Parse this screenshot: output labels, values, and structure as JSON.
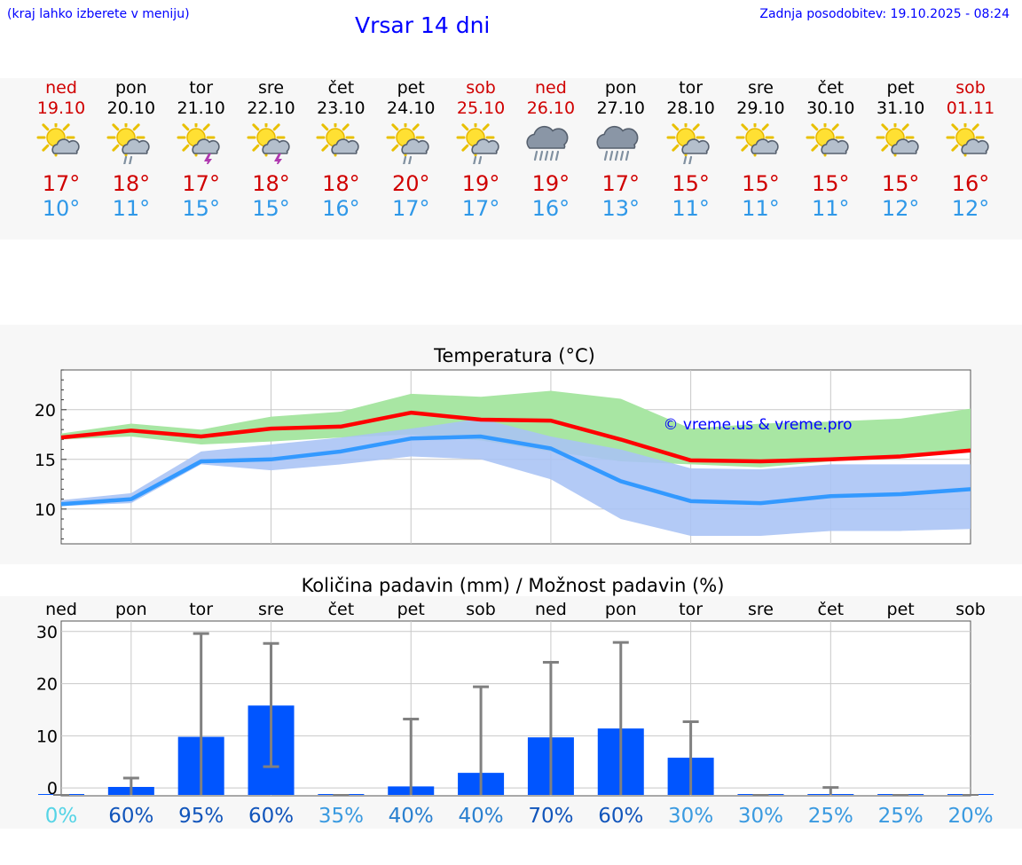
{
  "header": {
    "hint": "(kraj lahko izberete v meniju)",
    "title": "Vrsar 14 dni",
    "updated": "Zadnja posodobitev: 19.10.2025 - 08:24"
  },
  "days": [
    {
      "name": "ned",
      "date": "19.10",
      "icon": "sun-cloud",
      "tmax": "17°",
      "tmin": "10°",
      "weekend": true
    },
    {
      "name": "pon",
      "date": "20.10",
      "icon": "sun-cloud-rain",
      "tmax": "18°",
      "tmin": "11°",
      "weekend": false
    },
    {
      "name": "tor",
      "date": "21.10",
      "icon": "sun-cloud-thunder",
      "tmax": "17°",
      "tmin": "15°",
      "weekend": false
    },
    {
      "name": "sre",
      "date": "22.10",
      "icon": "sun-cloud-thunder",
      "tmax": "18°",
      "tmin": "15°",
      "weekend": false
    },
    {
      "name": "čet",
      "date": "23.10",
      "icon": "sun-cloud",
      "tmax": "18°",
      "tmin": "16°",
      "weekend": false
    },
    {
      "name": "pet",
      "date": "24.10",
      "icon": "sun-cloud-rain",
      "tmax": "20°",
      "tmin": "17°",
      "weekend": false
    },
    {
      "name": "sob",
      "date": "25.10",
      "icon": "sun-cloud-rain",
      "tmax": "19°",
      "tmin": "17°",
      "weekend": true
    },
    {
      "name": "ned",
      "date": "26.10",
      "icon": "cloud-heavy-rain",
      "tmax": "19°",
      "tmin": "16°",
      "weekend": true
    },
    {
      "name": "pon",
      "date": "27.10",
      "icon": "cloud-heavy-rain",
      "tmax": "17°",
      "tmin": "13°",
      "weekend": false
    },
    {
      "name": "tor",
      "date": "28.10",
      "icon": "sun-cloud-rain",
      "tmax": "15°",
      "tmin": "11°",
      "weekend": false
    },
    {
      "name": "sre",
      "date": "29.10",
      "icon": "sun-cloud",
      "tmax": "15°",
      "tmin": "11°",
      "weekend": false
    },
    {
      "name": "čet",
      "date": "30.10",
      "icon": "sun-cloud",
      "tmax": "15°",
      "tmin": "11°",
      "weekend": false
    },
    {
      "name": "pet",
      "date": "31.10",
      "icon": "sun-cloud",
      "tmax": "15°",
      "tmin": "12°",
      "weekend": false
    },
    {
      "name": "sob",
      "date": "01.11",
      "icon": "sun-cloud",
      "tmax": "16°",
      "tmin": "12°",
      "weekend": true
    }
  ],
  "colors": {
    "max_line": "#ff0000",
    "min_line": "#3399ff",
    "max_band": "#a8e6a3",
    "min_band": "#a9c3f5",
    "overlap_band": "#7fc7a8",
    "bar": "#0055ff",
    "whisker": "#808080",
    "link": "#0000ff"
  },
  "chart_data": [
    {
      "type": "line",
      "title": "Temperatura (°C)",
      "watermark": "© vreme.us & vreme.pro",
      "ylim": [
        6.5,
        24
      ],
      "yticks": [
        10,
        15,
        20
      ],
      "series": [
        {
          "name": "max",
          "values": [
            17.2,
            17.9,
            17.3,
            18.1,
            18.3,
            19.7,
            19.0,
            18.9,
            17.0,
            14.9,
            14.8,
            15.0,
            15.3,
            15.9
          ]
        },
        {
          "name": "min",
          "values": [
            10.5,
            11.0,
            14.8,
            15.0,
            15.8,
            17.1,
            17.3,
            16.1,
            12.8,
            10.8,
            10.6,
            11.3,
            11.5,
            12.0
          ]
        }
      ],
      "max_band": {
        "low": [
          17.0,
          17.3,
          16.5,
          16.8,
          17.2,
          17.5,
          16.9,
          15.8,
          14.8,
          14.5,
          14.2,
          14.8,
          15.3,
          16.0
        ],
        "high": [
          17.6,
          18.6,
          18.0,
          19.3,
          19.8,
          21.6,
          21.3,
          21.9,
          21.1,
          18.1,
          18.6,
          18.8,
          19.1,
          20.1
        ]
      },
      "min_band": {
        "low": [
          10.3,
          10.6,
          14.5,
          13.9,
          14.5,
          15.3,
          15.0,
          13.0,
          9.0,
          7.3,
          7.3,
          7.8,
          7.8,
          8.0
        ],
        "high": [
          10.9,
          11.6,
          15.8,
          16.5,
          17.2,
          18.1,
          19.1,
          17.3,
          16.0,
          14.1,
          14.0,
          14.5,
          14.5,
          14.5
        ]
      }
    },
    {
      "type": "bar",
      "title": "Količina padavin (mm) / Možnost padavin (%)",
      "categories": [
        "ned",
        "pon",
        "tor",
        "sre",
        "čet",
        "pet",
        "sob",
        "ned",
        "pon",
        "tor",
        "sre",
        "čet",
        "pet",
        "sob"
      ],
      "ylim": [
        -1.5,
        32
      ],
      "yticks": [
        0,
        10,
        20,
        30
      ],
      "values": [
        0,
        0.2,
        9.8,
        15.8,
        0,
        0.3,
        2.9,
        9.7,
        11.4,
        5.8,
        0,
        0,
        0,
        0
      ],
      "whisker_low": [
        0,
        0,
        0,
        4.1,
        0,
        0,
        0,
        0,
        0,
        0,
        0,
        0,
        0,
        0
      ],
      "whisker_high": [
        0,
        1.9,
        29.6,
        27.7,
        0,
        13.2,
        19.4,
        24.1,
        27.9,
        12.7,
        0,
        0.1,
        0,
        0
      ],
      "probability": [
        "0%",
        "60%",
        "95%",
        "60%",
        "35%",
        "40%",
        "40%",
        "70%",
        "60%",
        "30%",
        "30%",
        "25%",
        "25%",
        "20%"
      ],
      "probability_values": [
        0,
        60,
        95,
        60,
        35,
        40,
        40,
        70,
        60,
        30,
        30,
        25,
        25,
        20
      ]
    }
  ]
}
